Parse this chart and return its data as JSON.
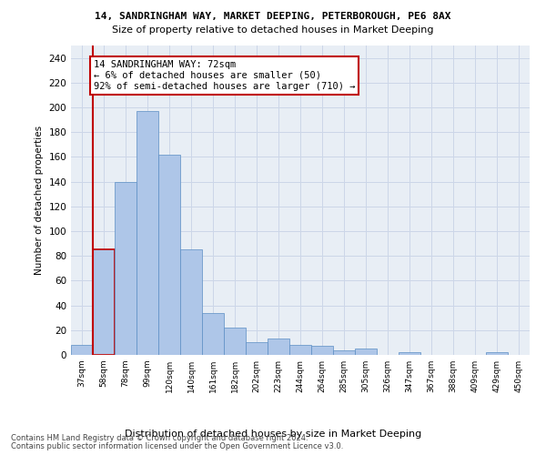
{
  "title1": "14, SANDRINGHAM WAY, MARKET DEEPING, PETERBOROUGH, PE6 8AX",
  "title2": "Size of property relative to detached houses in Market Deeping",
  "xlabel": "Distribution of detached houses by size in Market Deeping",
  "ylabel": "Number of detached properties",
  "categories": [
    "37sqm",
    "58sqm",
    "78sqm",
    "99sqm",
    "120sqm",
    "140sqm",
    "161sqm",
    "182sqm",
    "202sqm",
    "223sqm",
    "244sqm",
    "264sqm",
    "285sqm",
    "305sqm",
    "326sqm",
    "347sqm",
    "367sqm",
    "388sqm",
    "409sqm",
    "429sqm",
    "450sqm"
  ],
  "values": [
    8,
    85,
    140,
    197,
    162,
    85,
    34,
    22,
    10,
    13,
    8,
    7,
    4,
    5,
    0,
    2,
    0,
    0,
    0,
    2,
    0
  ],
  "bar_color": "#aec6e8",
  "bar_edge_color": "#5b8ec4",
  "highlight_bar_index": 1,
  "highlight_edge_color": "#c00000",
  "annotation_text": "14 SANDRINGHAM WAY: 72sqm\n← 6% of detached houses are smaller (50)\n92% of semi-detached houses are larger (710) →",
  "footer1": "Contains HM Land Registry data © Crown copyright and database right 2024.",
  "footer2": "Contains public sector information licensed under the Open Government Licence v3.0.",
  "ylim": [
    0,
    250
  ],
  "yticks": [
    0,
    20,
    40,
    60,
    80,
    100,
    120,
    140,
    160,
    180,
    200,
    220,
    240
  ],
  "grid_color": "#ccd6e8",
  "bg_color": "#e8eef5"
}
